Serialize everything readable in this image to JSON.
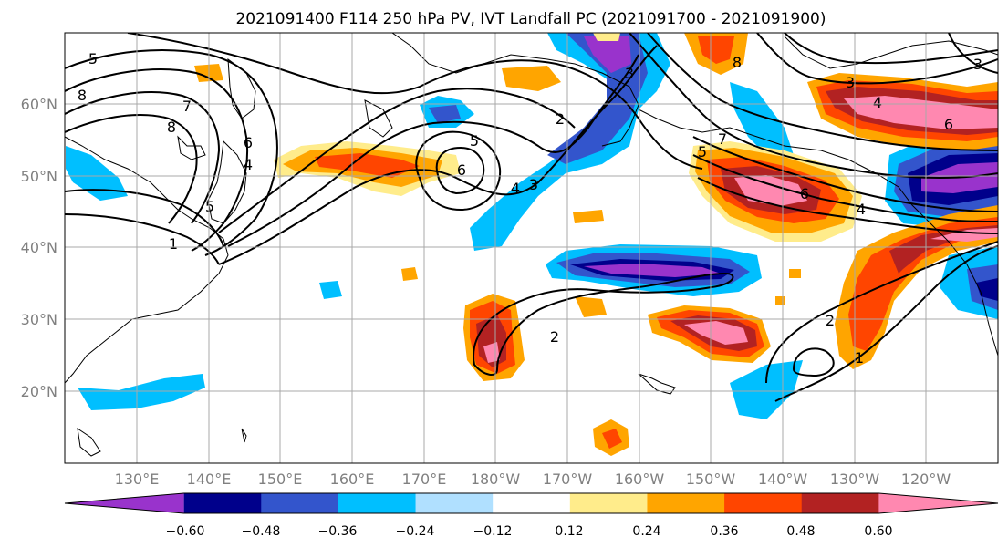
{
  "title": "2021091400 F114 250 hPa PV, IVT Landfall PC (2021091700 - 2021091900)",
  "lat_labels": [
    "60°N",
    "50°N",
    "40°N",
    "30°N",
    "20°N"
  ],
  "lon_labels": [
    "130°E",
    "140°E",
    "150°E",
    "160°E",
    "170°E",
    "180°W",
    "170°W",
    "160°W",
    "150°W",
    "140°W",
    "130°W",
    "120°W"
  ],
  "colorbar": {
    "ticks": [
      "−0.60",
      "−0.48",
      "−0.36",
      "−0.24",
      "−0.12",
      "0.12",
      "0.24",
      "0.36",
      "0.48",
      "0.60"
    ],
    "colors": [
      "#9933cc",
      "#00008b",
      "#3355cc",
      "#00bfff",
      "#b0e0ff",
      "#ffffff",
      "#ffec8b",
      "#ffa500",
      "#ff4500",
      "#b22222",
      "#ff88b0"
    ]
  },
  "contour_labels": [
    "5",
    "8",
    "7",
    "8",
    "6",
    "4",
    "5",
    "1",
    "2",
    "5",
    "6",
    "4",
    "3",
    "3",
    "2",
    "1",
    "8",
    "7",
    "5",
    "6",
    "4",
    "3",
    "4",
    "6",
    "2",
    "1",
    "3"
  ]
}
